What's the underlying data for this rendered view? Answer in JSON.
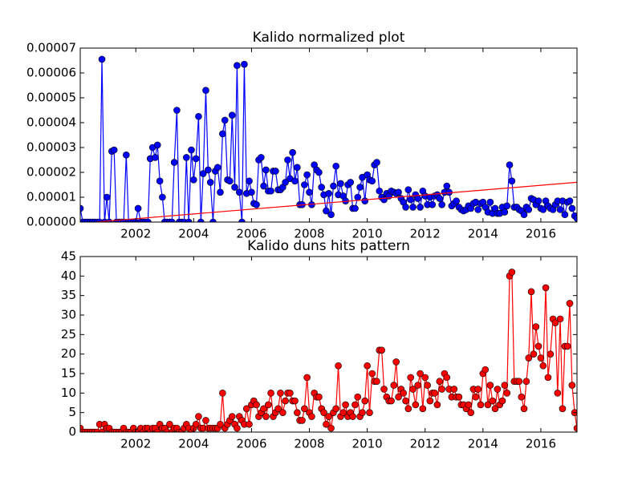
{
  "chart_data": [
    {
      "type": "line",
      "title": "Kalido normalized plot",
      "color": "#0000ff",
      "markers": true,
      "x": [
        2000.08,
        2000.17,
        2000.25,
        2000.33,
        2000.42,
        2000.5,
        2000.58,
        2000.67,
        2000.75,
        2000.83,
        2000.92,
        2001,
        2001.08,
        2001.17,
        2001.25,
        2001.33,
        2001.42,
        2001.5,
        2001.58,
        2001.67,
        2001.75,
        2001.83,
        2001.92,
        2002,
        2002.08,
        2002.17,
        2002.25,
        2002.33,
        2002.42,
        2002.5,
        2002.58,
        2002.67,
        2002.75,
        2002.83,
        2002.92,
        2003,
        2003.08,
        2003.17,
        2003.25,
        2003.33,
        2003.42,
        2003.5,
        2003.58,
        2003.67,
        2003.75,
        2003.83,
        2003.92,
        2004,
        2004.08,
        2004.17,
        2004.25,
        2004.33,
        2004.42,
        2004.5,
        2004.58,
        2004.67,
        2004.75,
        2004.83,
        2004.92,
        2005,
        2005.08,
        2005.17,
        2005.25,
        2005.33,
        2005.42,
        2005.5,
        2005.58,
        2005.67,
        2005.75,
        2005.83,
        2005.92,
        2006,
        2006.08,
        2006.17,
        2006.25,
        2006.33,
        2006.42,
        2006.5,
        2006.58,
        2006.67,
        2006.75,
        2006.83,
        2006.92,
        2007,
        2007.08,
        2007.17,
        2007.25,
        2007.33,
        2007.42,
        2007.5,
        2007.58,
        2007.67,
        2007.75,
        2007.83,
        2007.92,
        2008,
        2008.08,
        2008.17,
        2008.25,
        2008.33,
        2008.42,
        2008.5,
        2008.58,
        2008.67,
        2008.75,
        2008.83,
        2008.92,
        2009,
        2009.08,
        2009.17,
        2009.25,
        2009.33,
        2009.42,
        2009.5,
        2009.58,
        2009.67,
        2009.75,
        2009.83,
        2009.92,
        2010,
        2010.08,
        2010.17,
        2010.25,
        2010.33,
        2010.42,
        2010.5,
        2010.58,
        2010.67,
        2010.75,
        2010.83,
        2010.92,
        2011,
        2011.08,
        2011.17,
        2011.25,
        2011.33,
        2011.42,
        2011.5,
        2011.58,
        2011.67,
        2011.75,
        2011.83,
        2011.92,
        2012,
        2012.08,
        2012.17,
        2012.25,
        2012.33,
        2012.42,
        2012.5,
        2012.58,
        2012.67,
        2012.75,
        2012.83,
        2012.92,
        2013,
        2013.08,
        2013.17,
        2013.25,
        2013.33,
        2013.42,
        2013.5,
        2013.58,
        2013.67,
        2013.75,
        2013.83,
        2013.92,
        2014,
        2014.08,
        2014.17,
        2014.25,
        2014.33,
        2014.42,
        2014.5,
        2014.58,
        2014.67,
        2014.75,
        2014.83,
        2014.92,
        2015,
        2015.08,
        2015.17,
        2015.25,
        2015.33,
        2015.42,
        2015.5,
        2015.58,
        2015.67,
        2015.75,
        2015.83,
        2015.92,
        2016,
        2016.08,
        2016.17,
        2016.25,
        2016.33,
        2016.42,
        2016.5,
        2016.58,
        2016.67,
        2016.75,
        2016.83,
        2016.92,
        2017,
        2017.08,
        2017.17,
        2017.25
      ],
      "values": [
        5.5e-06,
        0,
        0,
        0,
        0,
        0,
        0,
        0,
        0,
        6.55e-05,
        0,
        1e-05,
        0,
        2.85e-05,
        2.9e-05,
        0,
        0,
        0,
        0,
        2.7e-05,
        0,
        0,
        0,
        0,
        5.5e-06,
        0,
        0,
        0,
        0,
        2.55e-05,
        3e-05,
        2.6e-05,
        3.1e-05,
        1.65e-05,
        1e-05,
        0,
        0,
        0,
        0,
        2.4e-05,
        4.5e-05,
        0,
        0,
        0,
        2.6e-05,
        0,
        2.9e-05,
        1.7e-05,
        2.55e-05,
        4.25e-05,
        0,
        1.95e-05,
        5.3e-05,
        2.1e-05,
        1.6e-05,
        0,
        2.05e-05,
        2.2e-05,
        1.2e-05,
        3.55e-05,
        4.1e-05,
        1.7e-05,
        1.65e-05,
        4.3e-05,
        1.4e-05,
        6.3e-05,
        1.2e-05,
        0,
        6.35e-05,
        1.15e-05,
        1.65e-05,
        1.2e-05,
        7.5e-06,
        7e-06,
        2.5e-05,
        2.6e-05,
        1.45e-05,
        2.1e-05,
        1.25e-05,
        1.25e-05,
        2.05e-05,
        2.05e-05,
        1.3e-05,
        1.3e-05,
        1.4e-05,
        1.6e-05,
        2.5e-05,
        1.75e-05,
        2.8e-05,
        1.65e-05,
        2.2e-05,
        7e-06,
        7e-06,
        1.5e-05,
        1.9e-05,
        1.2e-05,
        7e-06,
        2.3e-05,
        2.1e-05,
        2e-05,
        1.4e-05,
        1.1e-05,
        4.5e-06,
        1.15e-05,
        3e-06,
        1.45e-05,
        2.25e-05,
        1.1e-05,
        1.55e-05,
        1.05e-05,
        8.5e-06,
        1.5e-05,
        1.6e-05,
        5.5e-06,
        5.5e-06,
        1e-05,
        1.4e-05,
        1.8e-05,
        8.5e-06,
        1.9e-05,
        1.7e-05,
        1.65e-05,
        2.3e-05,
        2.4e-05,
        1.25e-05,
        1e-05,
        9e-06,
        1.15e-05,
        1.05e-05,
        1.25e-05,
        1.2e-05,
        1.15e-05,
        1.2e-05,
        9.5e-06,
        8e-06,
        6e-06,
        1.3e-05,
        9e-06,
        6e-06,
        1.1e-05,
        9.5e-06,
        6e-06,
        1.25e-05,
        1.05e-05,
        7e-06,
        1e-05,
        7e-06,
        1.05e-05,
        1.1e-05,
        9.5e-06,
        7e-06,
        1.2e-05,
        1.45e-05,
        1.2e-05,
        6.5e-06,
        7.5e-06,
        8.5e-06,
        6e-06,
        5e-06,
        4.5e-06,
        5e-06,
        6.5e-06,
        5.5e-06,
        7.5e-06,
        8e-06,
        5e-06,
        7.5e-06,
        8e-06,
        6e-06,
        4e-06,
        8e-06,
        3.5e-06,
        5.5e-06,
        3.5e-06,
        3.5e-06,
        6e-06,
        4e-06,
        6.5e-06,
        2.3e-05,
        1.65e-05,
        6e-06,
        6e-06,
        5e-06,
        4.5e-06,
        3e-06,
        6e-06,
        5e-06,
        9.5e-06,
        9e-06,
        7e-06,
        8.5e-06,
        5.5e-06,
        5e-06,
        8.5e-06,
        6.5e-06,
        5.5e-06,
        5e-06,
        7e-06,
        8.5e-06,
        5e-06,
        8.5e-06,
        3e-06,
        8e-06,
        8.5e-06,
        5.5e-06,
        2.5e-06,
        1.5e-06
      ],
      "trend": {
        "x": [
          2000.08,
          2017.25
        ],
        "values": [
          -5e-07,
          1.6e-05
        ],
        "color": "#ff0000"
      },
      "xlim": [
        2000.08,
        2017.25
      ],
      "xticks": [
        2002,
        2004,
        2006,
        2008,
        2010,
        2012,
        2014,
        2016
      ],
      "ylim": [
        0,
        7e-05
      ],
      "yticks": [
        {
          "value": 0,
          "label": "0.00000"
        },
        1e-05,
        2e-05,
        3e-05,
        4e-05,
        5e-05,
        6e-05,
        7e-05
      ]
    },
    {
      "type": "line",
      "title": "Kalido duns hits pattern",
      "color": "#ff0000",
      "markers": true,
      "x": [
        2000.08,
        2000.17,
        2000.25,
        2000.33,
        2000.42,
        2000.5,
        2000.58,
        2000.67,
        2000.75,
        2000.83,
        2000.92,
        2001,
        2001.08,
        2001.17,
        2001.25,
        2001.33,
        2001.42,
        2001.5,
        2001.58,
        2001.67,
        2001.75,
        2001.83,
        2001.92,
        2002,
        2002.08,
        2002.17,
        2002.25,
        2002.33,
        2002.42,
        2002.5,
        2002.58,
        2002.67,
        2002.75,
        2002.83,
        2002.92,
        2003,
        2003.08,
        2003.17,
        2003.25,
        2003.33,
        2003.42,
        2003.5,
        2003.58,
        2003.67,
        2003.75,
        2003.83,
        2003.92,
        2004,
        2004.08,
        2004.17,
        2004.25,
        2004.33,
        2004.42,
        2004.5,
        2004.58,
        2004.67,
        2004.75,
        2004.83,
        2004.92,
        2005,
        2005.08,
        2005.17,
        2005.25,
        2005.33,
        2005.42,
        2005.5,
        2005.58,
        2005.67,
        2005.75,
        2005.83,
        2005.92,
        2006,
        2006.08,
        2006.17,
        2006.25,
        2006.33,
        2006.42,
        2006.5,
        2006.58,
        2006.67,
        2006.75,
        2006.83,
        2006.92,
        2007,
        2007.08,
        2007.17,
        2007.25,
        2007.33,
        2007.42,
        2007.5,
        2007.58,
        2007.67,
        2007.75,
        2007.83,
        2007.92,
        2008,
        2008.08,
        2008.17,
        2008.25,
        2008.33,
        2008.42,
        2008.5,
        2008.58,
        2008.67,
        2008.75,
        2008.83,
        2008.92,
        2009,
        2009.08,
        2009.17,
        2009.25,
        2009.33,
        2009.42,
        2009.5,
        2009.58,
        2009.67,
        2009.75,
        2009.83,
        2009.92,
        2010,
        2010.08,
        2010.17,
        2010.25,
        2010.33,
        2010.42,
        2010.5,
        2010.58,
        2010.67,
        2010.75,
        2010.83,
        2010.92,
        2011,
        2011.08,
        2011.17,
        2011.25,
        2011.33,
        2011.42,
        2011.5,
        2011.58,
        2011.67,
        2011.75,
        2011.83,
        2011.92,
        2012,
        2012.08,
        2012.17,
        2012.25,
        2012.33,
        2012.42,
        2012.5,
        2012.58,
        2012.67,
        2012.75,
        2012.83,
        2012.92,
        2013,
        2013.08,
        2013.17,
        2013.25,
        2013.33,
        2013.42,
        2013.5,
        2013.58,
        2013.67,
        2013.75,
        2013.83,
        2013.92,
        2014,
        2014.08,
        2014.17,
        2014.25,
        2014.33,
        2014.42,
        2014.5,
        2014.58,
        2014.67,
        2014.75,
        2014.83,
        2014.92,
        2015,
        2015.08,
        2015.17,
        2015.25,
        2015.33,
        2015.42,
        2015.5,
        2015.58,
        2015.67,
        2015.75,
        2015.83,
        2015.92,
        2016,
        2016.08,
        2016.17,
        2016.25,
        2016.33,
        2016.42,
        2016.5,
        2016.58,
        2016.67,
        2016.75,
        2016.83,
        2016.92,
        2017,
        2017.08,
        2017.17,
        2017.25
      ],
      "values": [
        1,
        0,
        0,
        0,
        0,
        0,
        0,
        0,
        2,
        0,
        2,
        1,
        1,
        0,
        0,
        0,
        0,
        0,
        1,
        0,
        0,
        0,
        1,
        0,
        0,
        1,
        0,
        1,
        1,
        0,
        1,
        1,
        0,
        2,
        1,
        1,
        0,
        2,
        0,
        1,
        1,
        0,
        0,
        1,
        2,
        1,
        0,
        1,
        2,
        4,
        1,
        1,
        3,
        1,
        1,
        1,
        1,
        1,
        2,
        10,
        1,
        2,
        3,
        4,
        2,
        1,
        4,
        3,
        2,
        6,
        2,
        7,
        8,
        7,
        4,
        5,
        6,
        4,
        7,
        10,
        4,
        5,
        6,
        10,
        5,
        8,
        10,
        10,
        8,
        8,
        5,
        3,
        3,
        6,
        14,
        5,
        4,
        10,
        9,
        9,
        6,
        5,
        2,
        4,
        1,
        5,
        6,
        17,
        4,
        5,
        7,
        4,
        5,
        4,
        7,
        9,
        4,
        5,
        8,
        17,
        5,
        15,
        13,
        13,
        21,
        21,
        11,
        9,
        8,
        8,
        12,
        18,
        9,
        11,
        10,
        8,
        6,
        14,
        11,
        7,
        12,
        15,
        6,
        14,
        12,
        8,
        10,
        10,
        7,
        13,
        11,
        15,
        14,
        11,
        9,
        11,
        9,
        9,
        7,
        7,
        6,
        7,
        5,
        11,
        9,
        11,
        7,
        15,
        16,
        7,
        12,
        8,
        6,
        11,
        7,
        8,
        12,
        10,
        40,
        41,
        13,
        13,
        13,
        9,
        6,
        13,
        19,
        36,
        20,
        27,
        22,
        19,
        17,
        37,
        14,
        20,
        29,
        28,
        10,
        29,
        6,
        22,
        22,
        33,
        12,
        5,
        1
      ],
      "xlim": [
        2000.08,
        2017.25
      ],
      "xticks": [
        2002,
        2004,
        2006,
        2008,
        2010,
        2012,
        2014,
        2016
      ],
      "ylim": [
        0,
        45
      ],
      "yticks": [
        0,
        5,
        10,
        15,
        20,
        25,
        30,
        35,
        40,
        45
      ]
    }
  ]
}
